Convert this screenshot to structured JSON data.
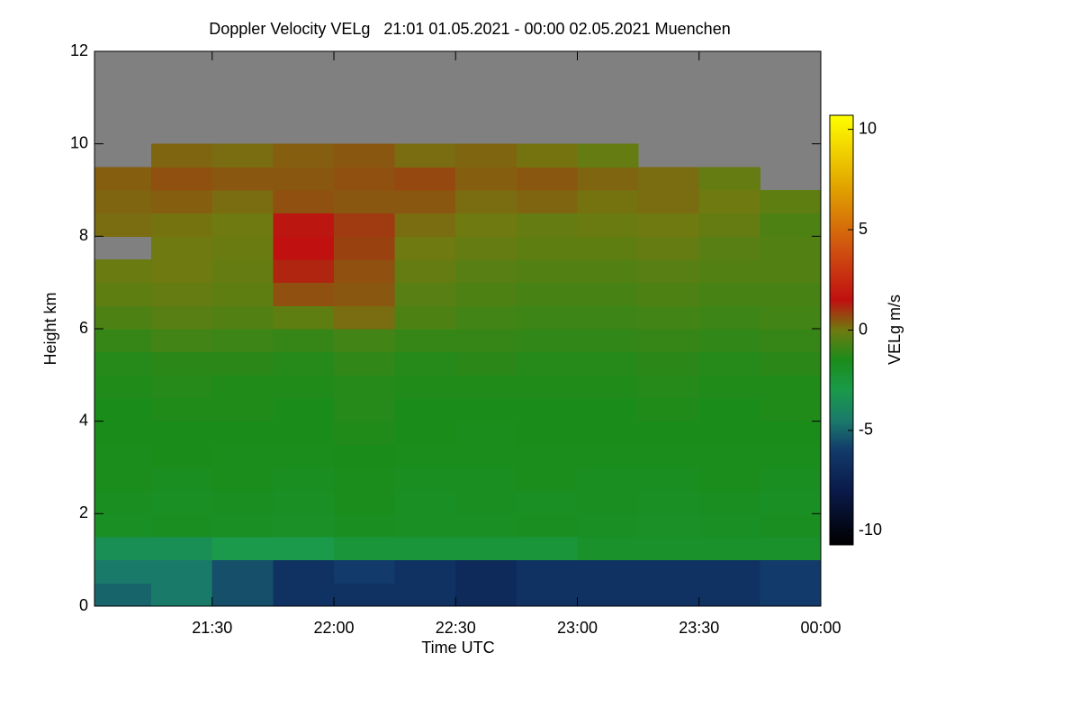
{
  "chart_data": {
    "type": "heatmap",
    "title": "Doppler Velocity VELg   21:01 01.05.2021 - 00:00 02.05.2021 Muenchen",
    "x_label": "Time UTC",
    "y_label": "Height km",
    "colorbar_label": "VELg m/s",
    "x": [
      21.0167,
      21.25,
      21.5,
      21.75,
      22.0,
      22.25,
      22.5,
      22.75,
      23.0,
      23.25,
      23.5,
      23.75,
      24.0
    ],
    "y": [
      0,
      0.5,
      1,
      1.5,
      2,
      2.5,
      3,
      3.5,
      4,
      4.5,
      5,
      5.5,
      6,
      6.5,
      7,
      7.5,
      8,
      8.5,
      9,
      9.5,
      10,
      10.5,
      11,
      11.5,
      12
    ],
    "values": [
      [
        -5,
        -4.5,
        -5.5,
        -6.5,
        -6.5,
        -6.5,
        -7,
        -6.5,
        -6.5,
        -6.5,
        -6.5,
        -6
      ],
      [
        -4.5,
        -4.5,
        -5.5,
        -6.5,
        -6,
        -6.5,
        -7,
        -6.5,
        -6.5,
        -6.5,
        -6.5,
        -6
      ],
      [
        -3.5,
        -3.5,
        -3,
        -3,
        -2.5,
        -2.5,
        -2.5,
        -2.5,
        -2,
        -2,
        -2,
        -2
      ],
      [
        -1.8,
        -1.7,
        -1.8,
        -1.9,
        -1.7,
        -1.8,
        -1.8,
        -1.7,
        -1.8,
        -1.9,
        -1.8,
        -1.7
      ],
      [
        -1.7,
        -1.8,
        -1.7,
        -1.8,
        -1.6,
        -1.8,
        -1.7,
        -1.8,
        -1.7,
        -1.8,
        -1.7,
        -1.8
      ],
      [
        -1.6,
        -1.7,
        -1.6,
        -1.7,
        -1.6,
        -1.7,
        -1.7,
        -1.6,
        -1.7,
        -1.7,
        -1.6,
        -1.7
      ],
      [
        -1.6,
        -1.5,
        -1.6,
        -1.6,
        -1.5,
        -1.6,
        -1.6,
        -1.6,
        -1.6,
        -1.6,
        -1.6,
        -1.6
      ],
      [
        -1.5,
        -1.5,
        -1.5,
        -1.5,
        -1.4,
        -1.5,
        -1.6,
        -1.5,
        -1.5,
        -1.5,
        -1.5,
        -1.5
      ],
      [
        -1.5,
        -1.4,
        -1.4,
        -1.5,
        -1.3,
        -1.5,
        -1.5,
        -1.5,
        -1.5,
        -1.4,
        -1.5,
        -1.4
      ],
      [
        -1.4,
        -1.3,
        -1.4,
        -1.4,
        -1.3,
        -1.4,
        -1.4,
        -1.4,
        -1.4,
        -1.3,
        -1.4,
        -1.4
      ],
      [
        -1.3,
        -1.2,
        -1.2,
        -1.3,
        -1.1,
        -1.3,
        -1.2,
        -1.3,
        -1.3,
        -1.2,
        -1.3,
        -1.2
      ],
      [
        -1,
        -0.8,
        -0.9,
        -1,
        -0.8,
        -1,
        -1,
        -1.1,
        -1.1,
        -1,
        -1.1,
        -1
      ],
      [
        -0.6,
        -0.4,
        -0.5,
        -0.3,
        0.2,
        -0.6,
        -0.8,
        -0.9,
        -0.9,
        -0.8,
        -0.9,
        -0.8
      ],
      [
        -0.3,
        -0.2,
        -0.3,
        0.6,
        0.5,
        -0.4,
        -0.6,
        -0.7,
        -0.7,
        -0.6,
        -0.7,
        -0.7
      ],
      [
        -0.1,
        0,
        -0.2,
        1.2,
        0.6,
        -0.2,
        -0.4,
        -0.5,
        -0.5,
        -0.4,
        -0.5,
        -0.5
      ],
      [
        null,
        0,
        -0.1,
        1.5,
        0.8,
        0,
        -0.2,
        -0.3,
        -0.3,
        -0.2,
        -0.4,
        -0.5
      ],
      [
        0.2,
        0.1,
        0,
        1.4,
        0.9,
        0.2,
        0,
        -0.2,
        -0.1,
        0,
        -0.2,
        -0.6
      ],
      [
        0.3,
        0.4,
        0.2,
        0.6,
        0.5,
        0.5,
        0.2,
        0.3,
        0.1,
        0.2,
        0,
        -0.3
      ],
      [
        0.4,
        0.6,
        0.5,
        0.5,
        0.6,
        0.7,
        0.4,
        0.5,
        0.3,
        0.2,
        -0.2,
        null
      ],
      [
        null,
        0.3,
        0.2,
        0.4,
        0.5,
        0.2,
        0.3,
        0.1,
        -0.2,
        null,
        null,
        null
      ],
      [
        null,
        null,
        null,
        null,
        null,
        null,
        null,
        null,
        null,
        null,
        null,
        null
      ],
      [
        null,
        null,
        null,
        null,
        null,
        null,
        null,
        null,
        null,
        null,
        null,
        null
      ],
      [
        null,
        null,
        null,
        null,
        null,
        null,
        null,
        null,
        null,
        null,
        null,
        null
      ],
      [
        null,
        null,
        null,
        null,
        null,
        null,
        null,
        null,
        null,
        null,
        null,
        null
      ]
    ],
    "xlim": [
      21.0167,
      24.0
    ],
    "ylim": [
      0,
      12
    ],
    "clim": [
      -10.7,
      10.7
    ],
    "xticks": [
      {
        "value": 21.5,
        "label": "21:30"
      },
      {
        "value": 22.0,
        "label": "22:00"
      },
      {
        "value": 22.5,
        "label": "22:30"
      },
      {
        "value": 23.0,
        "label": "23:00"
      },
      {
        "value": 23.5,
        "label": "23:30"
      },
      {
        "value": 24.0,
        "label": "00:00"
      }
    ],
    "yticks": [
      0,
      2,
      4,
      6,
      8,
      10,
      12
    ],
    "cticks": [
      -10,
      -5,
      0,
      5,
      10
    ],
    "missing_color": "#808080",
    "colormap": [
      {
        "value": -10.7,
        "color": "#000000"
      },
      {
        "value": -8,
        "color": "#0a1a4a"
      },
      {
        "value": -6,
        "color": "#123a6a"
      },
      {
        "value": -4.5,
        "color": "#1a7a6a"
      },
      {
        "value": -3,
        "color": "#1a9a4a"
      },
      {
        "value": -1.5,
        "color": "#1a8c1a"
      },
      {
        "value": 0,
        "color": "#6f7a10"
      },
      {
        "value": 1.5,
        "color": "#c01010"
      },
      {
        "value": 4,
        "color": "#d05010"
      },
      {
        "value": 7,
        "color": "#e0a000"
      },
      {
        "value": 10.7,
        "color": "#ffff00"
      }
    ]
  }
}
